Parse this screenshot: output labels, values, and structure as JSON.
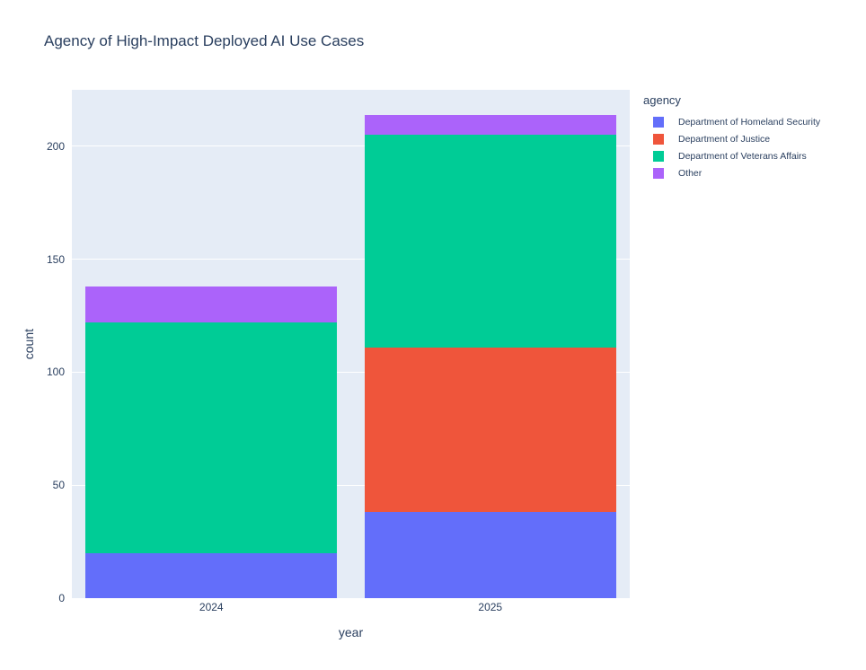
{
  "chart_data": {
    "type": "bar",
    "stacked": true,
    "title": "Agency of High-Impact Deployed AI Use Cases",
    "xlabel": "year",
    "ylabel": "count",
    "categories": [
      "2024",
      "2025"
    ],
    "series": [
      {
        "name": "Department of Homeland Security",
        "color": "#636EFA",
        "values": [
          20,
          38
        ]
      },
      {
        "name": "Department of Justice",
        "color": "#EF553B",
        "values": [
          0,
          73
        ]
      },
      {
        "name": "Department of Veterans Affairs",
        "color": "#00CC96",
        "values": [
          102,
          94
        ]
      },
      {
        "name": "Other",
        "color": "#AB63FA",
        "values": [
          16,
          9
        ]
      }
    ],
    "ylim": [
      0,
      225
    ],
    "yticks": [
      0,
      50,
      100,
      150,
      200
    ],
    "grid": true,
    "legend": {
      "title": "agency",
      "position": "right"
    },
    "plot_bgcolor": "#E5ECF6",
    "paper_bgcolor": "#FFFFFF",
    "gridline_color": "#FFFFFF",
    "text_color": "#2a3f5f",
    "bar_fraction": 0.902
  }
}
